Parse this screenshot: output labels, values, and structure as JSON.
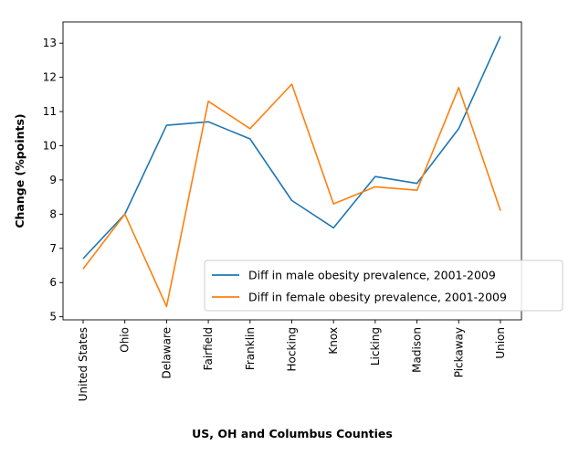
{
  "chart_data": {
    "type": "line",
    "categories": [
      "United States",
      "Ohio",
      "Delaware",
      "Fairfield",
      "Franklin",
      "Hocking",
      "Knox",
      "Licking",
      "Madison",
      "Pickaway",
      "Union"
    ],
    "series": [
      {
        "name": "Diff in male obesity prevalence, 2001-2009",
        "color": "#1f77b4",
        "values": [
          6.7,
          8.0,
          10.6,
          10.7,
          10.2,
          8.4,
          7.6,
          9.1,
          8.9,
          10.5,
          13.2
        ]
      },
      {
        "name": "Diff in female obesity prevalence, 2001-2009",
        "color": "#ff7f0e",
        "values": [
          6.4,
          8.0,
          5.3,
          11.3,
          10.5,
          11.8,
          8.3,
          8.8,
          8.7,
          11.7,
          8.1
        ]
      }
    ],
    "xlabel": "US, OH and Columbus Counties",
    "ylabel": "Change (%points)",
    "ylim": [
      4.91,
      13.62
    ],
    "yticks": [
      5,
      6,
      7,
      8,
      9,
      10,
      11,
      12,
      13
    ],
    "legend_position": "lower-right",
    "grid": false
  }
}
